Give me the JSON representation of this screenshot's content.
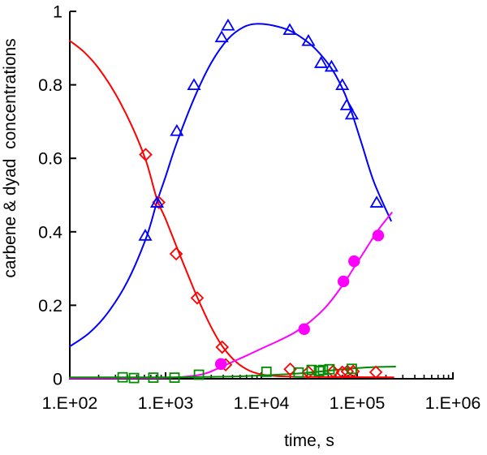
{
  "chart_data": {
    "type": "line+scatter",
    "title": "",
    "xlabel": "time, s",
    "ylabel": "carbene & dyad  concentrations",
    "x_scale": "log",
    "xlim": [
      100,
      1000000
    ],
    "ylim": [
      0,
      1
    ],
    "x_tick_values": [
      100,
      1000,
      10000,
      100000,
      1000000
    ],
    "x_tick_labels": [
      "1.E+02",
      "1.E+03",
      "1.E+04",
      "1.E+05",
      "1.E+06"
    ],
    "x_minor_ticks": "log-decades 2-9",
    "y_tick_values": [
      1,
      0.8,
      0.6,
      0.4,
      0.2,
      0
    ],
    "y_tick_labels": [
      "1",
      "0.8",
      "0.6",
      "0.4",
      "0.2",
      "0"
    ],
    "grid": false,
    "legend": "none",
    "background": "#ffffff",
    "axis_color": "#000000",
    "series": [
      {
        "name": "red-fit-curve",
        "kind": "line",
        "color": "#ff0000",
        "points": [
          [
            100,
            0.92
          ],
          [
            140,
            0.89
          ],
          [
            200,
            0.845
          ],
          [
            300,
            0.775
          ],
          [
            450,
            0.685
          ],
          [
            630,
            0.59
          ],
          [
            810,
            0.49
          ],
          [
            1000,
            0.435
          ],
          [
            1300,
            0.36
          ],
          [
            1700,
            0.285
          ],
          [
            2200,
            0.215
          ],
          [
            3000,
            0.14
          ],
          [
            4000,
            0.085
          ],
          [
            5500,
            0.045
          ],
          [
            7500,
            0.022
          ],
          [
            10000,
            0.012
          ],
          [
            15000,
            0.007
          ],
          [
            30000,
            0.005
          ],
          [
            240000,
            0.004
          ]
        ]
      },
      {
        "name": "blue-fit-curve",
        "kind": "line",
        "color": "#0000ff",
        "points": [
          [
            100,
            0.088
          ],
          [
            160,
            0.125
          ],
          [
            250,
            0.18
          ],
          [
            400,
            0.265
          ],
          [
            630,
            0.385
          ],
          [
            810,
            0.48
          ],
          [
            1000,
            0.55
          ],
          [
            1300,
            0.64
          ],
          [
            2000,
            0.765
          ],
          [
            3000,
            0.86
          ],
          [
            4500,
            0.925
          ],
          [
            6500,
            0.957
          ],
          [
            9000,
            0.966
          ],
          [
            13000,
            0.962
          ],
          [
            20000,
            0.947
          ],
          [
            32000,
            0.912
          ],
          [
            45000,
            0.872
          ],
          [
            60000,
            0.825
          ],
          [
            80000,
            0.755
          ],
          [
            110000,
            0.645
          ],
          [
            150000,
            0.535
          ],
          [
            226000,
            0.43
          ]
        ]
      },
      {
        "name": "magenta-fit-curve",
        "kind": "line",
        "color": "#ff00ff",
        "points": [
          [
            100,
            0.001
          ],
          [
            800,
            0.002
          ],
          [
            1500,
            0.005
          ],
          [
            2500,
            0.013
          ],
          [
            3800,
            0.032
          ],
          [
            5000,
            0.046
          ],
          [
            7000,
            0.063
          ],
          [
            10000,
            0.082
          ],
          [
            15000,
            0.103
          ],
          [
            23000,
            0.128
          ],
          [
            35000,
            0.163
          ],
          [
            50000,
            0.203
          ],
          [
            72000,
            0.258
          ],
          [
            93000,
            0.303
          ],
          [
            120000,
            0.348
          ],
          [
            166000,
            0.405
          ],
          [
            230000,
            0.452
          ]
        ]
      },
      {
        "name": "green-fit-curve",
        "kind": "line",
        "color": "#008b00",
        "points": [
          [
            100,
            0.004
          ],
          [
            1000,
            0.004
          ],
          [
            2500,
            0.005
          ],
          [
            5000,
            0.006
          ],
          [
            8000,
            0.008
          ],
          [
            12000,
            0.01
          ],
          [
            20000,
            0.013
          ],
          [
            35000,
            0.018
          ],
          [
            60000,
            0.024
          ],
          [
            100000,
            0.029
          ],
          [
            160000,
            0.032
          ],
          [
            250000,
            0.033
          ]
        ]
      },
      {
        "name": "red-diamond-data",
        "kind": "scatter",
        "marker": "diamond-open",
        "color": "#ff0000",
        "points": [
          [
            620,
            0.61
          ],
          [
            850,
            0.48
          ],
          [
            1290,
            0.34
          ],
          [
            2140,
            0.22
          ],
          [
            3900,
            0.086
          ],
          [
            4240,
            0.038
          ],
          [
            20000,
            0.026
          ],
          [
            31000,
            0.018
          ],
          [
            56000,
            0.02
          ],
          [
            70000,
            0.018
          ],
          [
            79000,
            0.02
          ],
          [
            91000,
            0.02
          ],
          [
            157000,
            0.018
          ]
        ]
      },
      {
        "name": "blue-triangle-data",
        "kind": "scatter",
        "marker": "triangle-open",
        "color": "#0000ff",
        "points": [
          [
            614,
            0.39
          ],
          [
            815,
            0.48
          ],
          [
            1310,
            0.675
          ],
          [
            1980,
            0.8
          ],
          [
            3850,
            0.93
          ],
          [
            4490,
            0.962
          ],
          [
            19800,
            0.95
          ],
          [
            31000,
            0.92
          ],
          [
            42000,
            0.86
          ],
          [
            54000,
            0.85
          ],
          [
            70000,
            0.8
          ],
          [
            78000,
            0.745
          ],
          [
            88000,
            0.72
          ],
          [
            160000,
            0.48
          ]
        ]
      },
      {
        "name": "magenta-circle-data",
        "kind": "scatter",
        "marker": "circle-filled",
        "color": "#ff00ff",
        "points": [
          [
            3780,
            0.04
          ],
          [
            28000,
            0.135
          ],
          [
            72000,
            0.265
          ],
          [
            93000,
            0.32
          ],
          [
            166000,
            0.39
          ]
        ]
      },
      {
        "name": "green-square-data",
        "kind": "scatter",
        "marker": "square-open",
        "color": "#008b00",
        "points": [
          [
            356,
            0.004
          ],
          [
            468,
            0.002
          ],
          [
            745,
            0.003
          ],
          [
            1240,
            0.003
          ],
          [
            2230,
            0.011
          ],
          [
            11300,
            0.019
          ],
          [
            24500,
            0.017
          ],
          [
            33500,
            0.024
          ],
          [
            40000,
            0.021
          ],
          [
            44000,
            0.024
          ],
          [
            51500,
            0.026
          ],
          [
            88000,
            0.027
          ]
        ]
      }
    ]
  }
}
